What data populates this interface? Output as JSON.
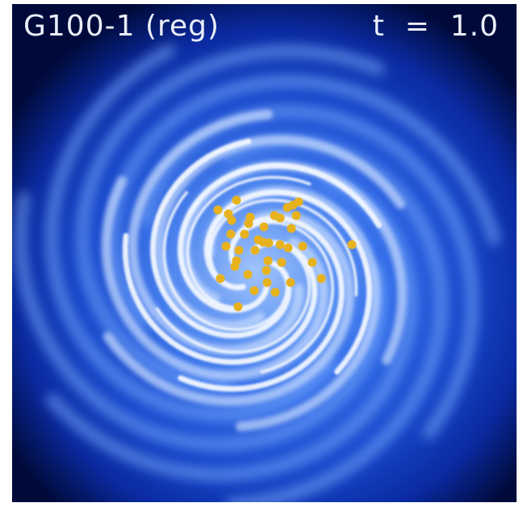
{
  "image": {
    "title": "G100-1 (reg)",
    "time_label": "t  =  1.0",
    "colors": {
      "background": "#000a3a",
      "disk_outer": "#0a2aa0",
      "disk_mid": "#2f6ae8",
      "filament": "#e8f2ff",
      "sink_particle": "#e7b21e"
    },
    "sink_particles": 40
  }
}
